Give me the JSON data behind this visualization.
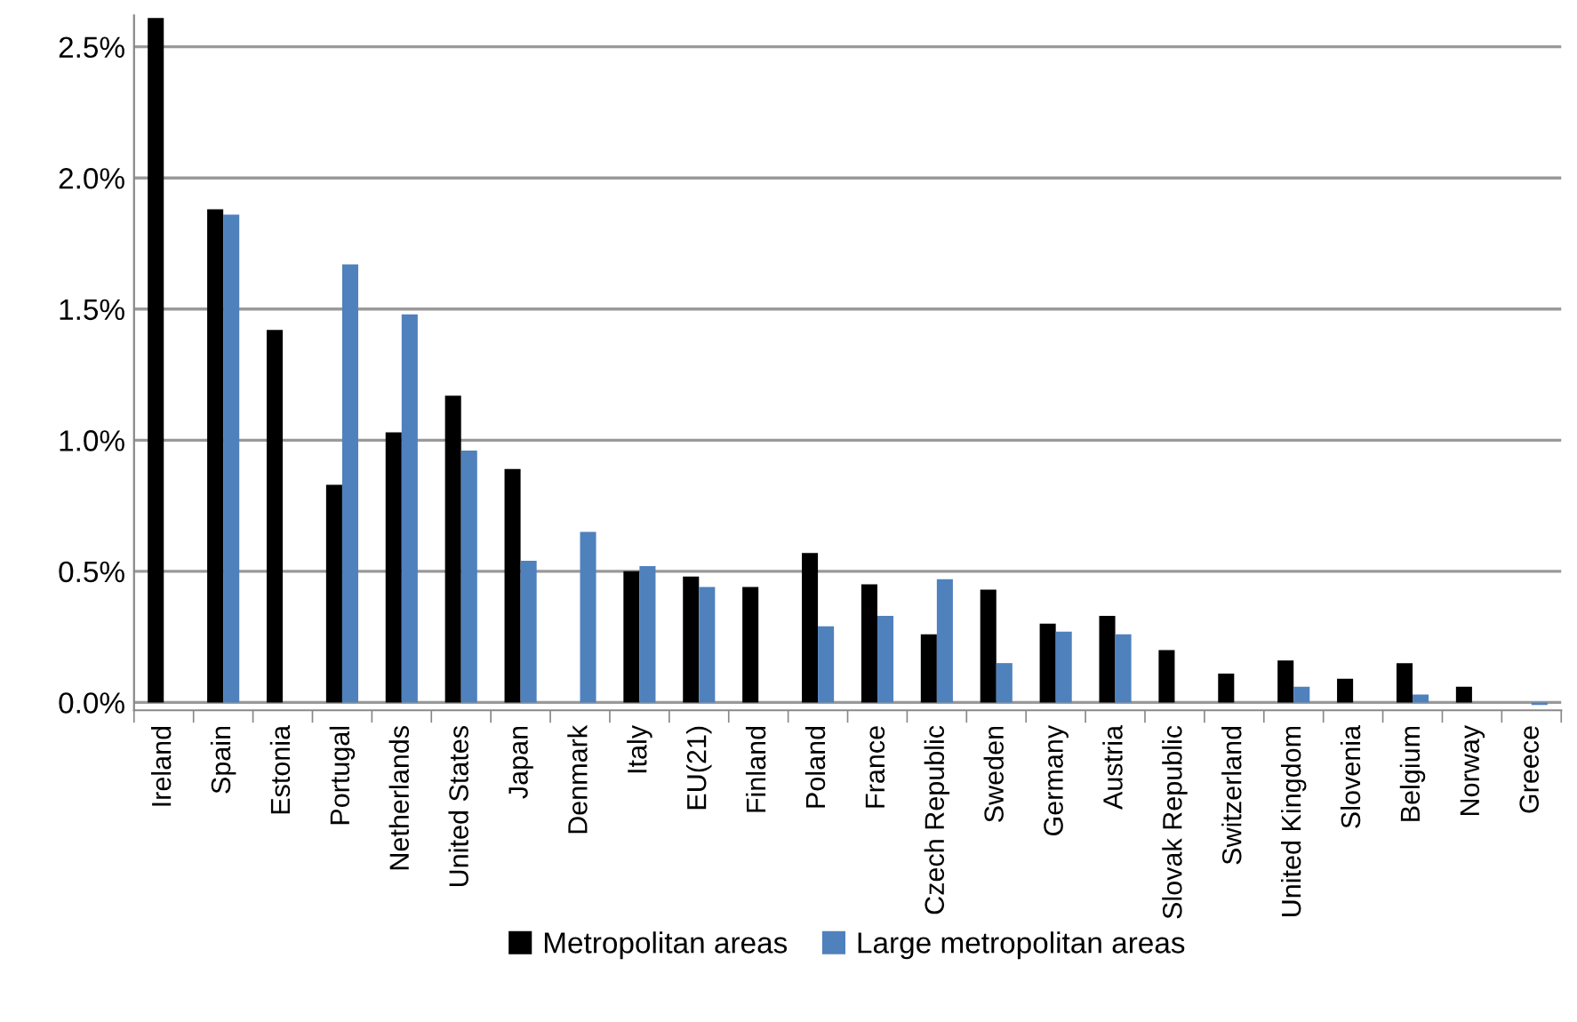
{
  "chart_data": {
    "type": "bar",
    "categories": [
      "Ireland",
      "Spain",
      "Estonia",
      "Portugal",
      "Netherlands",
      "United States",
      "Japan",
      "Denmark",
      "Italy",
      "EU(21)",
      "Finland",
      "Poland",
      "France",
      "Czech Republic",
      "Sweden",
      "Germany",
      "Austria",
      "Slovak Republic",
      "Switzerland",
      "United Kingdom",
      "Slovenia",
      "Belgium",
      "Norway",
      "Greece"
    ],
    "series": [
      {
        "name": "Metropolitan areas",
        "color": "#000000",
        "values": [
          2.61,
          1.88,
          1.42,
          0.83,
          1.03,
          1.17,
          0.89,
          null,
          0.5,
          0.48,
          0.44,
          0.57,
          0.45,
          0.26,
          0.43,
          0.3,
          0.33,
          0.2,
          0.11,
          0.16,
          0.09,
          0.15,
          0.06,
          null
        ]
      },
      {
        "name": "Large metropolitan areas",
        "color": "#4f81bd",
        "values": [
          null,
          1.86,
          null,
          1.67,
          1.48,
          0.96,
          0.54,
          0.65,
          0.52,
          0.44,
          null,
          0.29,
          0.33,
          0.47,
          0.15,
          0.27,
          0.26,
          null,
          null,
          0.06,
          null,
          0.03,
          null,
          -0.01
        ]
      }
    ],
    "ylim": [
      -0.03,
      2.62
    ],
    "yticks": [
      {
        "value": 0,
        "label": "0.0%"
      },
      {
        "value": 0.5,
        "label": "0.5%"
      },
      {
        "value": 1.0,
        "label": "1.0%"
      },
      {
        "value": 1.5,
        "label": "1.5%"
      },
      {
        "value": 2.0,
        "label": "2.0%"
      },
      {
        "value": 2.5,
        "label": "2.5%"
      }
    ],
    "grid": "y",
    "legend": "bottom"
  }
}
